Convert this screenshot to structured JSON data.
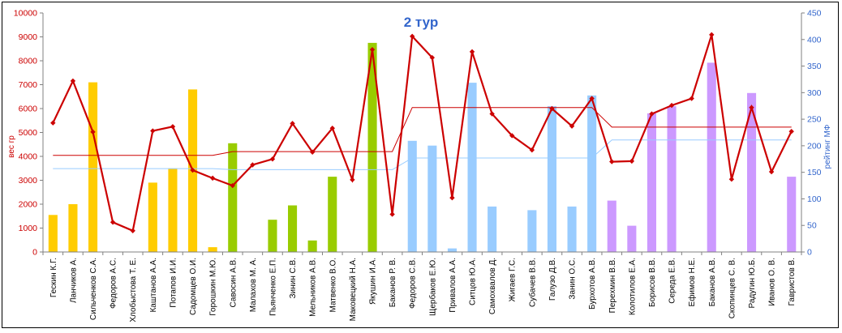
{
  "chart_data": {
    "type": "bar",
    "title": "2 тур",
    "ylabel_left": "вес гр",
    "ylabel_right": "рейтинг МФ",
    "ylim_left": [
      0,
      10000
    ],
    "ylim_right": [
      0,
      450
    ],
    "left_ticks": [
      "0",
      "1000",
      "2000",
      "3000",
      "4000",
      "5000",
      "6000",
      "7000",
      "8000",
      "9000",
      "10000"
    ],
    "right_ticks": [
      "0",
      "50",
      "100",
      "150",
      "200",
      "250",
      "300",
      "350",
      "400",
      "450"
    ],
    "categories": [
      "Гескин К.Г.",
      "Ланчиков А.",
      "Сильченков С.А.",
      "Федоров А.С.",
      "Хлобыстова Т. Е.",
      "Каштанов А.А.",
      "Потапов И.И.",
      "Садомцев О.И.",
      "Горошкин М.Ю.",
      "Савосин А.В.",
      "Малахов М. А.",
      "Пьянченко Е.П.",
      "Зинин С.В.",
      "Мельников А.В.",
      "Матвенко В.О.",
      "Маковецкий Н.А.",
      "Якушин И.А.",
      "Баканов Р. В.",
      "Федоров С.В.",
      "Щербаков Е.Ю.",
      "Привалов А.А.",
      "Ситцов Ю.А.",
      "Самохвалов Д.",
      "Жигаев Г.С.",
      "Субачев В.В.",
      "Галузо Д.В.",
      "Занин О.С.",
      "Бурхотов А.В.",
      "Перехмин В.В.",
      "Колотилов Е.А.",
      "Борисов В.В.",
      "Середа Е.В.",
      "Ефимов Н.Е.",
      "Баканов А.В.",
      "Скопинцев С. В.",
      "Радугин Ю.Б.",
      "Иванов О. В.",
      "Гавристов В."
    ],
    "series": [
      {
        "role": "bars",
        "axis": "left",
        "values": [
          1550,
          2000,
          7100,
          0,
          0,
          2900,
          3500,
          6800,
          200,
          4550,
          0,
          1350,
          1950,
          480,
          3150,
          0,
          8750,
          0,
          4650,
          4450,
          150,
          7080,
          1900,
          0,
          1750,
          6100,
          1900,
          6550,
          2150,
          1100,
          5800,
          6100,
          0,
          7920,
          0,
          6650,
          0,
          3150
        ],
        "colors": [
          "#ffcc00",
          "#ffcc00",
          "#ffcc00",
          "#ffcc00",
          "#ffcc00",
          "#ffcc00",
          "#ffcc00",
          "#ffcc00",
          "#ffcc00",
          "#99cc00",
          "#99cc00",
          "#99cc00",
          "#99cc00",
          "#99cc00",
          "#99cc00",
          "#99cc00",
          "#99cc00",
          "#99ccff",
          "#99ccff",
          "#99ccff",
          "#99ccff",
          "#99ccff",
          "#99ccff",
          "#99ccff",
          "#99ccff",
          "#99ccff",
          "#99ccff",
          "#99ccff",
          "#cc99ff",
          "#cc99ff",
          "#cc99ff",
          "#cc99ff",
          "#cc99ff",
          "#cc99ff",
          "#cc99ff",
          "#cc99ff",
          "#cc99ff",
          "#cc99ff"
        ]
      },
      {
        "role": "line",
        "axis": "right",
        "color": "#cc0000",
        "values": [
          243,
          322,
          226,
          56,
          40,
          228,
          236,
          154,
          139,
          125,
          164,
          175,
          242,
          188,
          233,
          136,
          381,
          71,
          406,
          366,
          102,
          377,
          260,
          219,
          192,
          270,
          237,
          289,
          170,
          171,
          260,
          276,
          289,
          409,
          137,
          272,
          151,
          227
        ]
      },
      {
        "role": "avg",
        "axis": "right",
        "color": "#cc0000",
        "values": [
          182,
          182,
          182,
          182,
          182,
          182,
          182,
          182,
          182,
          189,
          189,
          189,
          189,
          189,
          189,
          189,
          189,
          189,
          272,
          272,
          272,
          272,
          272,
          272,
          272,
          272,
          272,
          272,
          235,
          235,
          235,
          235,
          235,
          235,
          235,
          235,
          235,
          235
        ]
      },
      {
        "role": "avg",
        "axis": "right",
        "color": "#99ccff",
        "values": [
          157,
          157,
          157,
          157,
          157,
          157,
          157,
          157,
          157,
          155,
          155,
          155,
          155,
          155,
          155,
          155,
          155,
          155,
          177,
          177,
          177,
          177,
          177,
          177,
          177,
          177,
          177,
          177,
          211,
          211,
          211,
          211,
          211,
          211,
          211,
          211,
          211,
          211
        ]
      }
    ],
    "grid": false,
    "legend": "none"
  }
}
